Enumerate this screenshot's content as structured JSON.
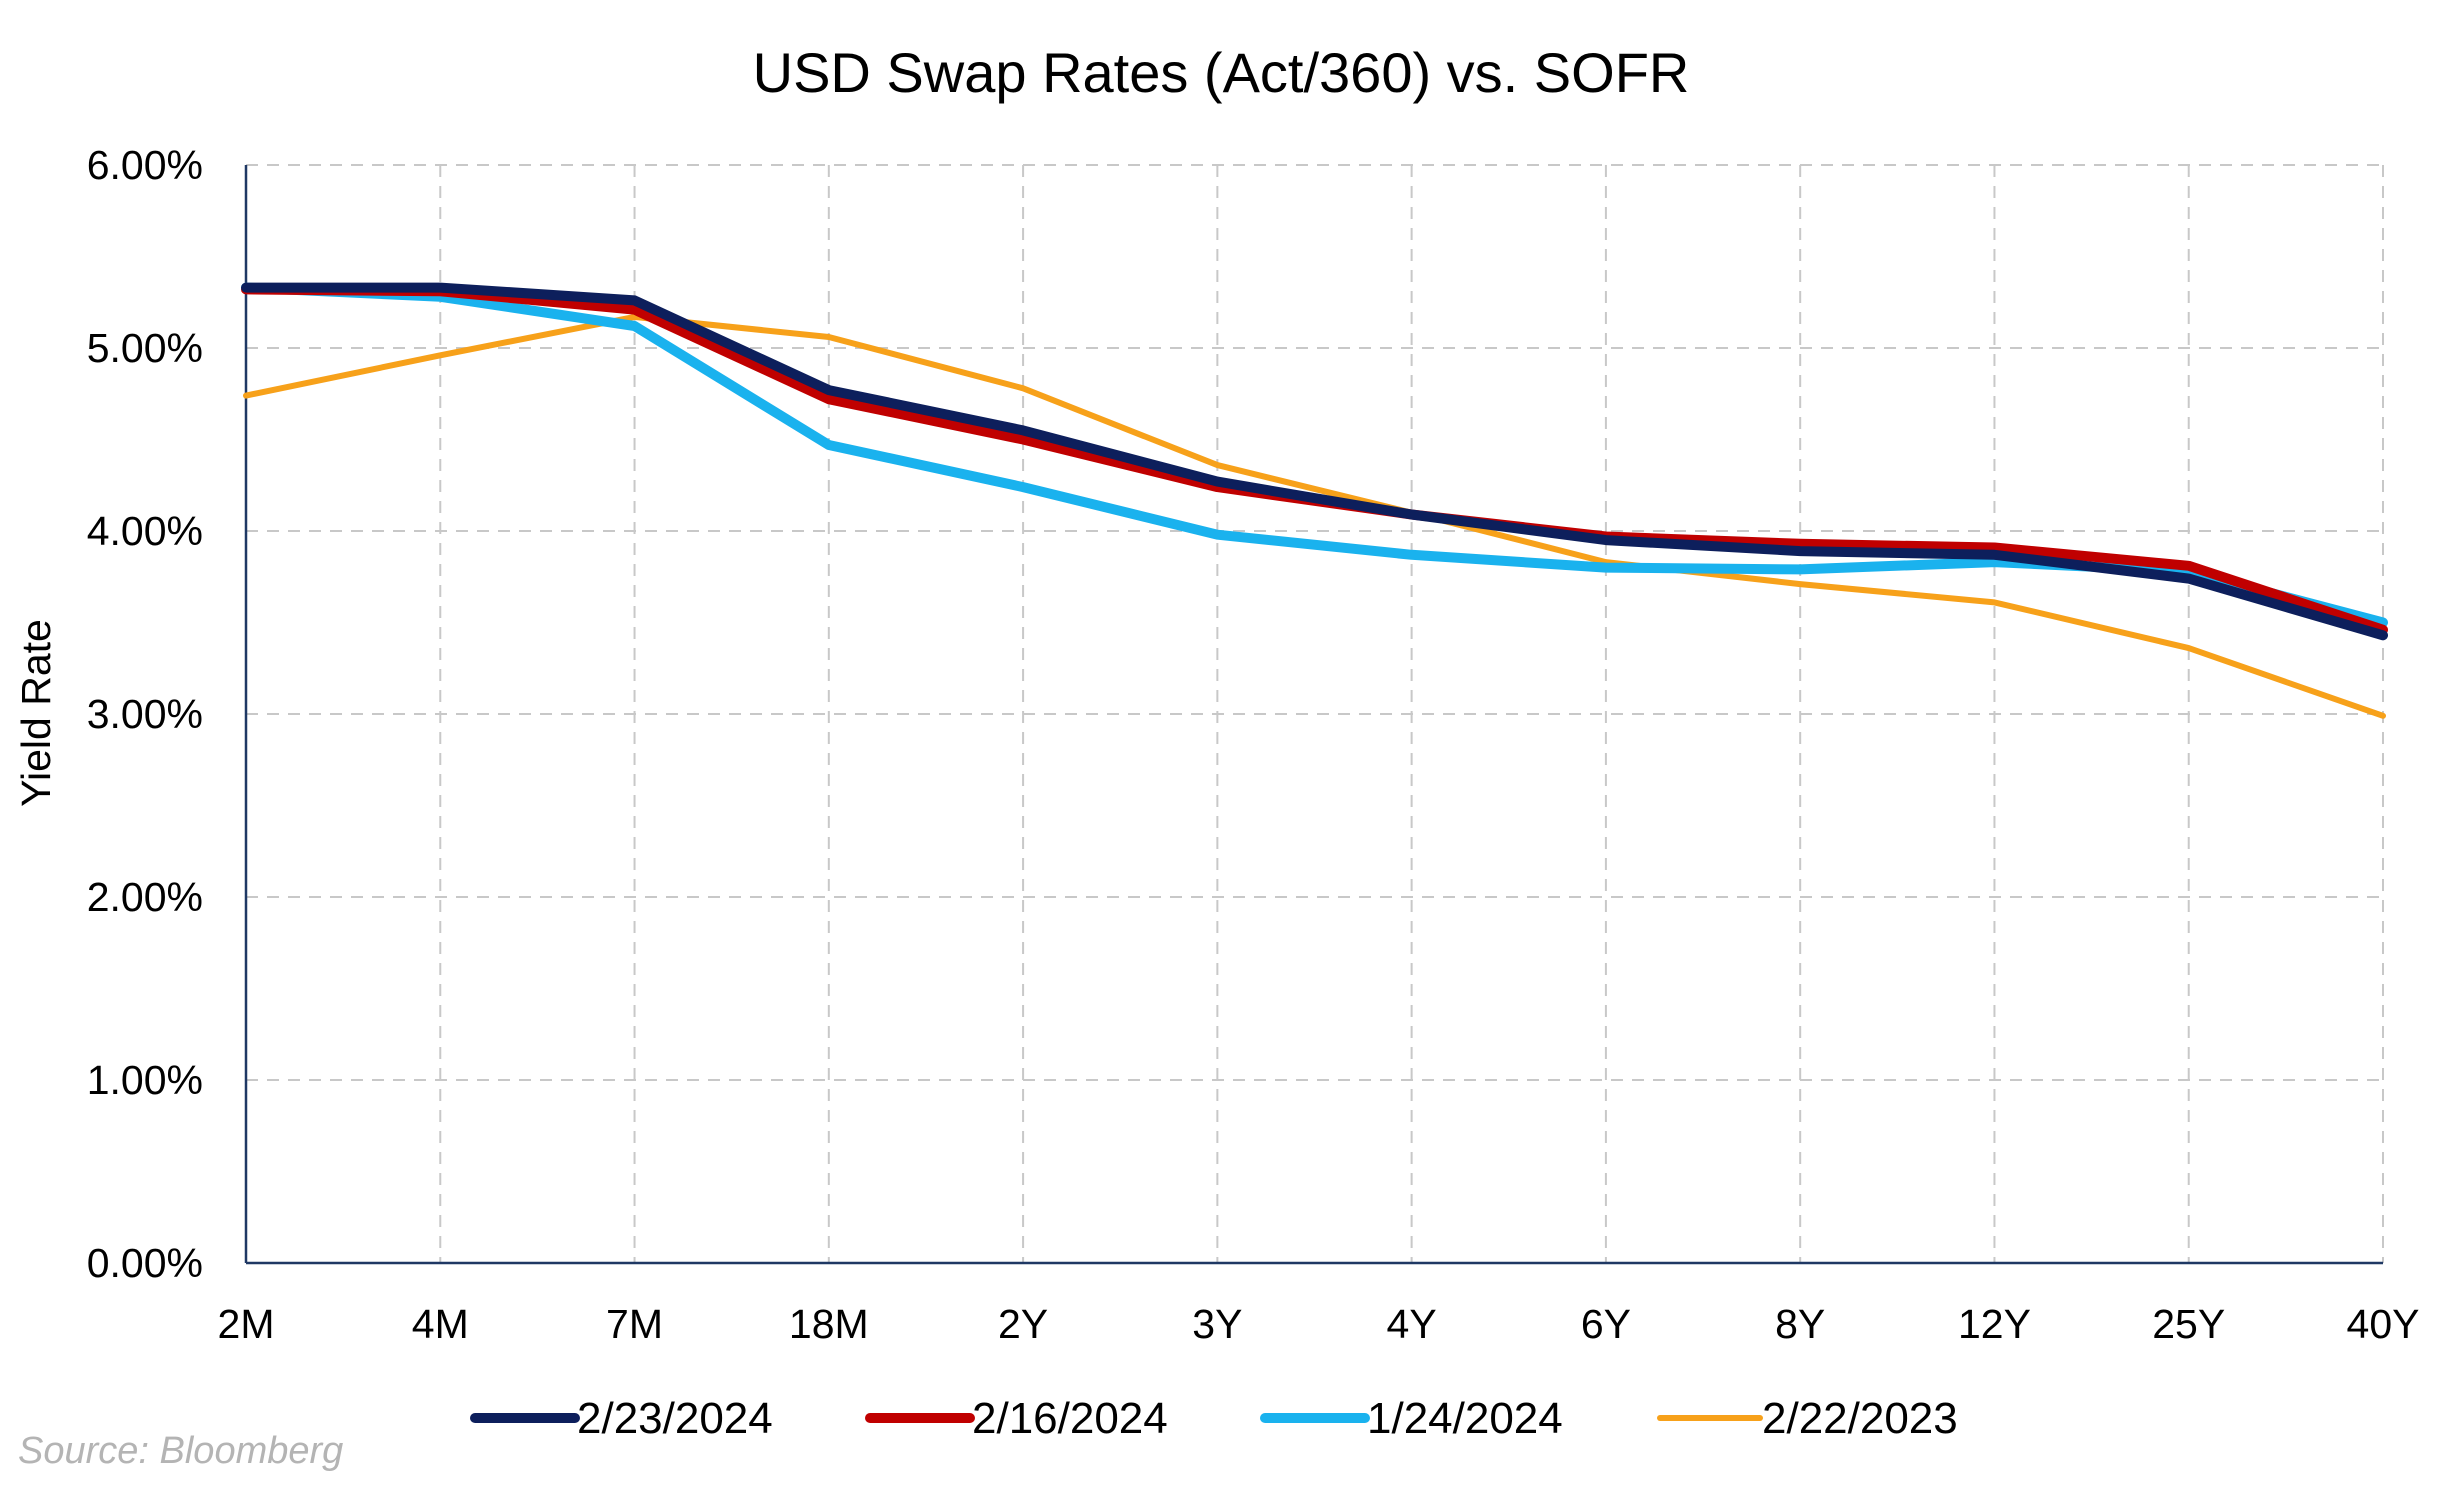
{
  "chart_data": {
    "type": "line",
    "title": "USD Swap Rates (Act/360) vs. SOFR",
    "xlabel": "",
    "ylabel": "Yield Rate",
    "ylim": [
      0,
      6
    ],
    "yticks": [
      "0.00%",
      "1.00%",
      "2.00%",
      "3.00%",
      "4.00%",
      "5.00%",
      "6.00%"
    ],
    "categories": [
      "2M",
      "4M",
      "7M",
      "18M",
      "2Y",
      "3Y",
      "4Y",
      "6Y",
      "8Y",
      "12Y",
      "25Y",
      "40Y"
    ],
    "grid": true,
    "legend_position": "bottom",
    "series": [
      {
        "name": "2/23/2024",
        "color": "#0d1f5c",
        "values": [
          5.33,
          5.33,
          5.26,
          4.77,
          4.55,
          4.27,
          4.09,
          3.95,
          3.89,
          3.87,
          3.74,
          3.43
        ]
      },
      {
        "name": "2/16/2024",
        "color": "#c00000",
        "values": [
          5.32,
          5.31,
          5.21,
          4.72,
          4.5,
          4.24,
          4.09,
          3.97,
          3.93,
          3.91,
          3.81,
          3.46
        ]
      },
      {
        "name": "1/24/2024",
        "color": "#1ab2ee",
        "values": [
          5.33,
          5.28,
          5.12,
          4.47,
          4.24,
          3.98,
          3.87,
          3.8,
          3.79,
          3.83,
          3.78,
          3.5
        ]
      },
      {
        "name": "2/22/2023",
        "color": "#f7a11a",
        "values": [
          4.74,
          4.96,
          5.17,
          5.06,
          4.78,
          4.36,
          4.1,
          3.83,
          3.71,
          3.61,
          3.36,
          2.99
        ]
      }
    ]
  },
  "source": "Source: Bloomberg"
}
